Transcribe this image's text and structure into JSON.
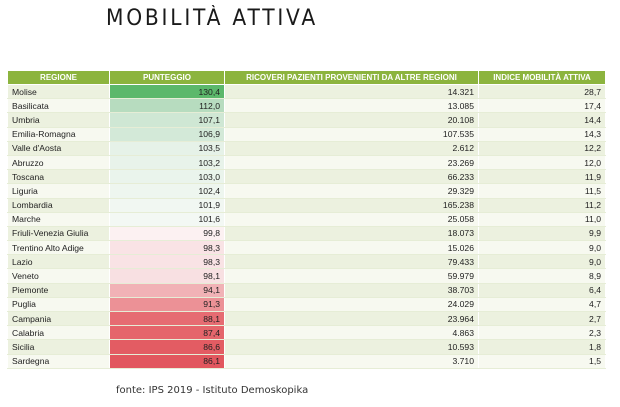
{
  "title": "MOBILITÀ ATTIVA",
  "table": {
    "headers": [
      "REGIONE",
      "PUNTEGGIO",
      "RICOVERI PAZIENTI PROVENIENTI DA ALTRE REGIONI",
      "INDICE MOBILITÀ ATTIVA"
    ],
    "rows": [
      {
        "regione": "Molise",
        "punteggio": "130,4",
        "ricoveri": "14.321",
        "indice": "28,7",
        "color": "#5cb86b"
      },
      {
        "regione": "Basilicata",
        "punteggio": "112,0",
        "ricoveri": "13.085",
        "indice": "17,4",
        "color": "#b7dcbf"
      },
      {
        "regione": "Umbria",
        "punteggio": "107,1",
        "ricoveri": "20.108",
        "indice": "14,4",
        "color": "#cfe7d4"
      },
      {
        "regione": "Emilia-Romagna",
        "punteggio": "106,9",
        "ricoveri": "107.535",
        "indice": "14,3",
        "color": "#d3e9d8"
      },
      {
        "regione": "Valle d'Aosta",
        "punteggio": "103,5",
        "ricoveri": "2.612",
        "indice": "12,2",
        "color": "#e6f2e8"
      },
      {
        "regione": "Abruzzo",
        "punteggio": "103,2",
        "ricoveri": "23.269",
        "indice": "12,0",
        "color": "#e8f3ea"
      },
      {
        "regione": "Toscana",
        "punteggio": "103,0",
        "ricoveri": "66.233",
        "indice": "11,9",
        "color": "#eaf4ec"
      },
      {
        "regione": "Liguria",
        "punteggio": "102,4",
        "ricoveri": "29.329",
        "indice": "11,5",
        "color": "#eef6ef"
      },
      {
        "regione": "Lombardia",
        "punteggio": "101,9",
        "ricoveri": "165.238",
        "indice": "11,2",
        "color": "#f1f7f2"
      },
      {
        "regione": "Marche",
        "punteggio": "101,6",
        "ricoveri": "25.058",
        "indice": "11,0",
        "color": "#f3f8f4"
      },
      {
        "regione": "Friuli-Venezia Giulia",
        "punteggio": "99,8",
        "ricoveri": "18.073",
        "indice": "9,9",
        "color": "#fcf1f2"
      },
      {
        "regione": "Trentino Alto Adige",
        "punteggio": "98,3",
        "ricoveri": "15.026",
        "indice": "9,0",
        "color": "#f9e3e5"
      },
      {
        "regione": "Lazio",
        "punteggio": "98,3",
        "ricoveri": "79.433",
        "indice": "9,0",
        "color": "#f9e3e5"
      },
      {
        "regione": "Veneto",
        "punteggio": "98,1",
        "ricoveri": "59.979",
        "indice": "8,9",
        "color": "#f8e0e2"
      },
      {
        "regione": "Piemonte",
        "punteggio": "94,1",
        "ricoveri": "38.703",
        "indice": "6,4",
        "color": "#f1b2b6"
      },
      {
        "regione": "Puglia",
        "punteggio": "91,3",
        "ricoveri": "24.029",
        "indice": "4,7",
        "color": "#ec9196"
      },
      {
        "regione": "Campania",
        "punteggio": "88,1",
        "ricoveri": "23.964",
        "indice": "2,7",
        "color": "#e66c72"
      },
      {
        "regione": "Calabria",
        "punteggio": "87,4",
        "ricoveri": "4.863",
        "indice": "2,3",
        "color": "#e5656b"
      },
      {
        "regione": "Sicilia",
        "punteggio": "86,6",
        "ricoveri": "10.593",
        "indice": "1,8",
        "color": "#e35c63"
      },
      {
        "regione": "Sardegna",
        "punteggio": "86,1",
        "ricoveri": "3.710",
        "indice": "1,5",
        "color": "#e2575e"
      }
    ]
  },
  "source": "fonte: IPS 2019 - Istituto Demoskopika"
}
